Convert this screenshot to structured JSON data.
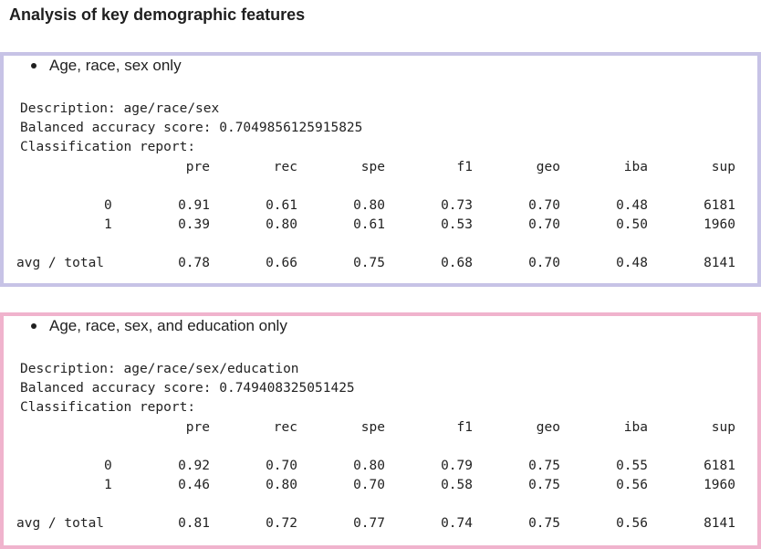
{
  "heading": "Analysis of key demographic features",
  "panel_colors": [
    "#c7c3e6",
    "#f0b3cd"
  ],
  "panels": [
    {
      "bullet": "Age, race, sex only",
      "description": "Description: age/race/sex",
      "score": "Balanced accuracy score: 0.7049856125915825",
      "report_label": "Classification report:",
      "columns": [
        "pre",
        "rec",
        "spe",
        "f1",
        "geo",
        "iba",
        "sup"
      ],
      "rows": [
        {
          "label": "0",
          "values": [
            "0.91",
            "0.61",
            "0.80",
            "0.73",
            "0.70",
            "0.48",
            "6181"
          ]
        },
        {
          "label": "1",
          "values": [
            "0.39",
            "0.80",
            "0.61",
            "0.53",
            "0.70",
            "0.50",
            "1960"
          ]
        },
        {
          "label": "avg / total",
          "values": [
            "0.78",
            "0.66",
            "0.75",
            "0.68",
            "0.70",
            "0.48",
            "8141"
          ]
        }
      ]
    },
    {
      "bullet": "Age, race, sex, and education only",
      "description": "Description: age/race/sex/education",
      "score": "Balanced accuracy score: 0.749408325051425",
      "report_label": "Classification report:",
      "columns": [
        "pre",
        "rec",
        "spe",
        "f1",
        "geo",
        "iba",
        "sup"
      ],
      "rows": [
        {
          "label": "0",
          "values": [
            "0.92",
            "0.70",
            "0.80",
            "0.79",
            "0.75",
            "0.55",
            "6181"
          ]
        },
        {
          "label": "1",
          "values": [
            "0.46",
            "0.80",
            "0.70",
            "0.58",
            "0.75",
            "0.56",
            "1960"
          ]
        },
        {
          "label": "avg / total",
          "values": [
            "0.81",
            "0.72",
            "0.77",
            "0.74",
            "0.75",
            "0.56",
            "8141"
          ]
        }
      ]
    }
  ]
}
